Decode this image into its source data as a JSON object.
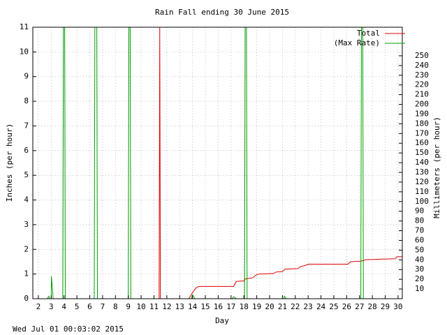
{
  "chart_data": {
    "type": "line",
    "title": "Rain Fall ending 30 June 2015",
    "x_label": "Day",
    "y_label": "Inches (per hour)",
    "y2_label": "Millimeters (per hour)",
    "footer": "Wed Jul 01 00:03:02 2015",
    "xlim": [
      1.57,
      30.33
    ],
    "xticks": [
      2,
      3,
      4,
      5,
      6,
      7,
      8,
      9,
      10,
      11,
      12,
      13,
      14,
      15,
      16,
      17,
      18,
      19,
      20,
      21,
      22,
      23,
      24,
      25,
      26,
      27,
      28,
      29,
      30
    ],
    "ylim": [
      0,
      11
    ],
    "yticks": [
      0,
      1,
      2,
      3,
      4,
      5,
      6,
      7,
      8,
      9,
      10,
      11
    ],
    "y2lim": [
      0,
      279.4
    ],
    "y2ticks": [
      10,
      20,
      30,
      40,
      50,
      60,
      70,
      80,
      90,
      100,
      110,
      120,
      130,
      140,
      150,
      160,
      170,
      180,
      190,
      200,
      210,
      220,
      230,
      240,
      250
    ],
    "grid": true,
    "legend": "top-right",
    "series": [
      {
        "name": "Total",
        "color": "#e00000",
        "x": [
          1.6,
          11.4,
          11.45,
          11.5,
          13.7,
          13.9,
          14.0,
          14.3,
          14.5,
          17.2,
          17.4,
          18.0,
          18.1,
          18.7,
          18.9,
          19.2,
          20.3,
          20.5,
          21.0,
          21.2,
          22.2,
          22.4,
          22.8,
          23.0,
          26.1,
          26.3,
          27.1,
          27.5,
          28.6,
          29.8,
          29.9,
          30.33
        ],
        "values": [
          0,
          0,
          11,
          0,
          0,
          0.15,
          0.25,
          0.45,
          0.5,
          0.5,
          0.7,
          0.72,
          0.8,
          0.85,
          0.95,
          1.0,
          1.02,
          1.08,
          1.1,
          1.2,
          1.22,
          1.3,
          1.35,
          1.4,
          1.4,
          1.5,
          1.52,
          1.58,
          1.6,
          1.62,
          1.7,
          1.7
        ]
      },
      {
        "name": "(Max Rate)",
        "color": "#00a000",
        "x": [
          1.6,
          2.7,
          2.8,
          2.9,
          3.0,
          3.02,
          3.08,
          3.15,
          3.9,
          3.95,
          4.05,
          4.1,
          6.35,
          6.4,
          6.55,
          6.6,
          9.0,
          9.05,
          9.15,
          9.2,
          13.9,
          14.0,
          14.2,
          17.1,
          17.2,
          17.4,
          18.05,
          18.1,
          18.2,
          18.25,
          21.1,
          21.15,
          21.3,
          27.1,
          27.15,
          27.25,
          27.3,
          30.33
        ],
        "values": [
          0,
          0,
          0.1,
          0,
          0,
          0.9,
          0.5,
          0,
          0,
          11,
          11,
          0,
          0,
          11,
          11,
          0,
          0,
          11,
          11,
          0,
          0,
          0.15,
          0,
          0,
          0.08,
          0,
          0,
          11,
          11,
          0,
          0,
          0.1,
          0,
          0,
          11,
          11,
          0,
          0
        ]
      }
    ]
  }
}
